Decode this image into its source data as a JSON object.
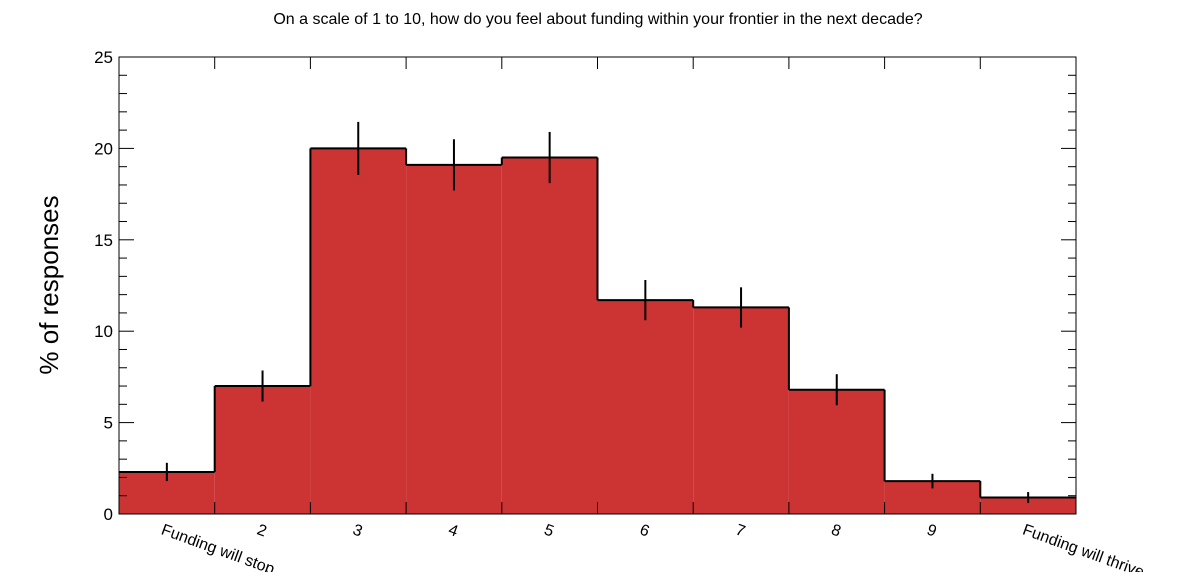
{
  "chart_data": {
    "type": "histogram-steps",
    "title": "On a scale of 1 to 10, how do you feel about funding within your frontier in the next decade?",
    "y_label": "% of responses",
    "categories": [
      "Funding will stop",
      "2",
      "3",
      "4",
      "5",
      "6",
      "7",
      "8",
      "9",
      "Funding will thrive"
    ],
    "values": [
      2.3,
      7.0,
      20.0,
      19.1,
      19.5,
      11.7,
      11.3,
      6.8,
      1.8,
      0.9
    ],
    "errors": [
      0.5,
      0.85,
      1.45,
      1.4,
      1.4,
      1.1,
      1.1,
      0.85,
      0.4,
      0.3
    ],
    "color": "#cc3333",
    "ylim": [
      0,
      25
    ],
    "yticks": [
      0,
      5,
      10,
      15,
      20,
      25
    ]
  }
}
